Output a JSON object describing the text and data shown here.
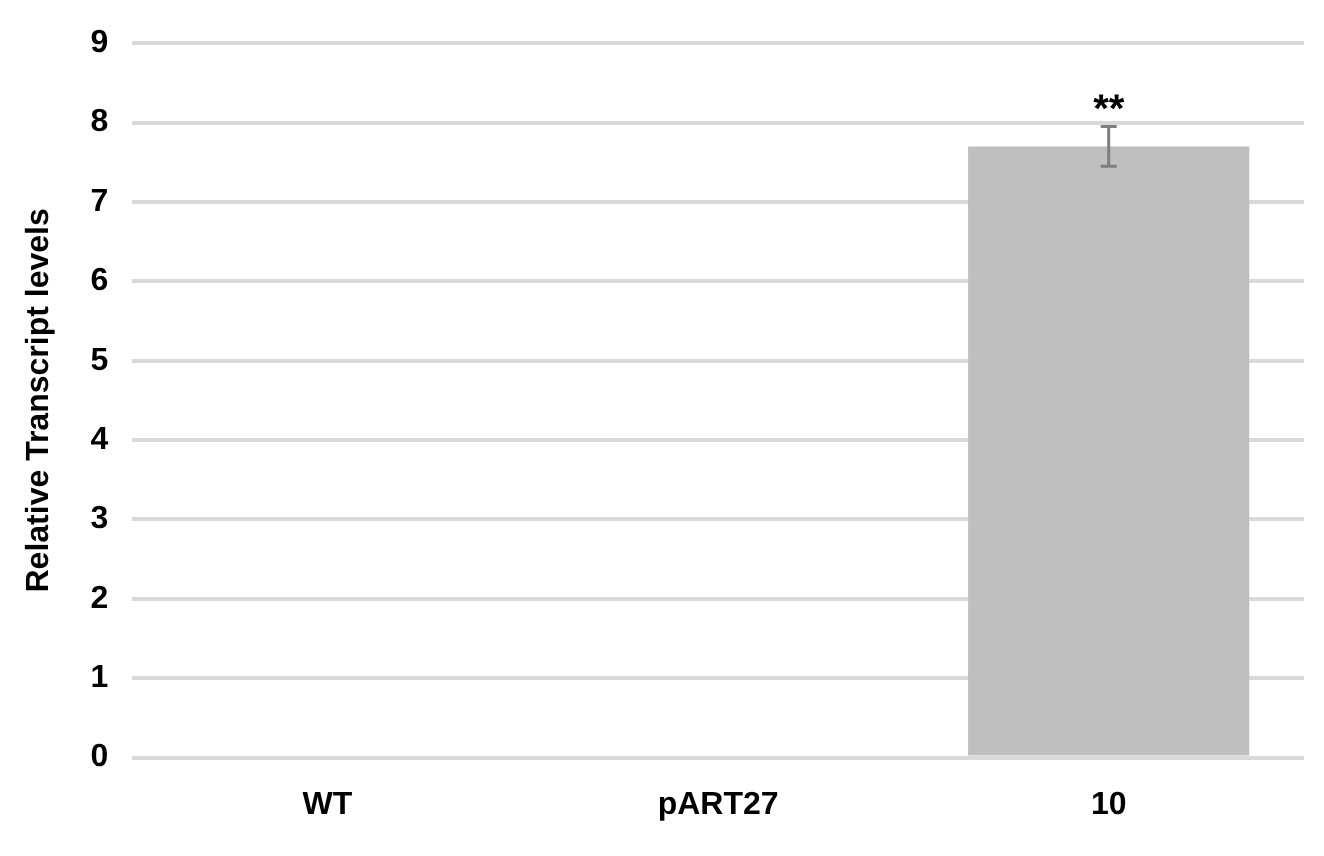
{
  "chart_data": {
    "type": "bar",
    "ylabel": "Relative Transcript levels",
    "categories": [
      "WT",
      "pART27",
      "10"
    ],
    "values": [
      0,
      0,
      7.7
    ],
    "errors": [
      null,
      null,
      0.25
    ],
    "color": "#bfbfbf",
    "ylim": [
      0,
      9
    ],
    "yticks": [
      0,
      1,
      2,
      3,
      4,
      5,
      6,
      7,
      8,
      9
    ],
    "grid": "y",
    "annotations": [
      {
        "text": "**",
        "x": "10",
        "y": 7.95
      }
    ]
  }
}
